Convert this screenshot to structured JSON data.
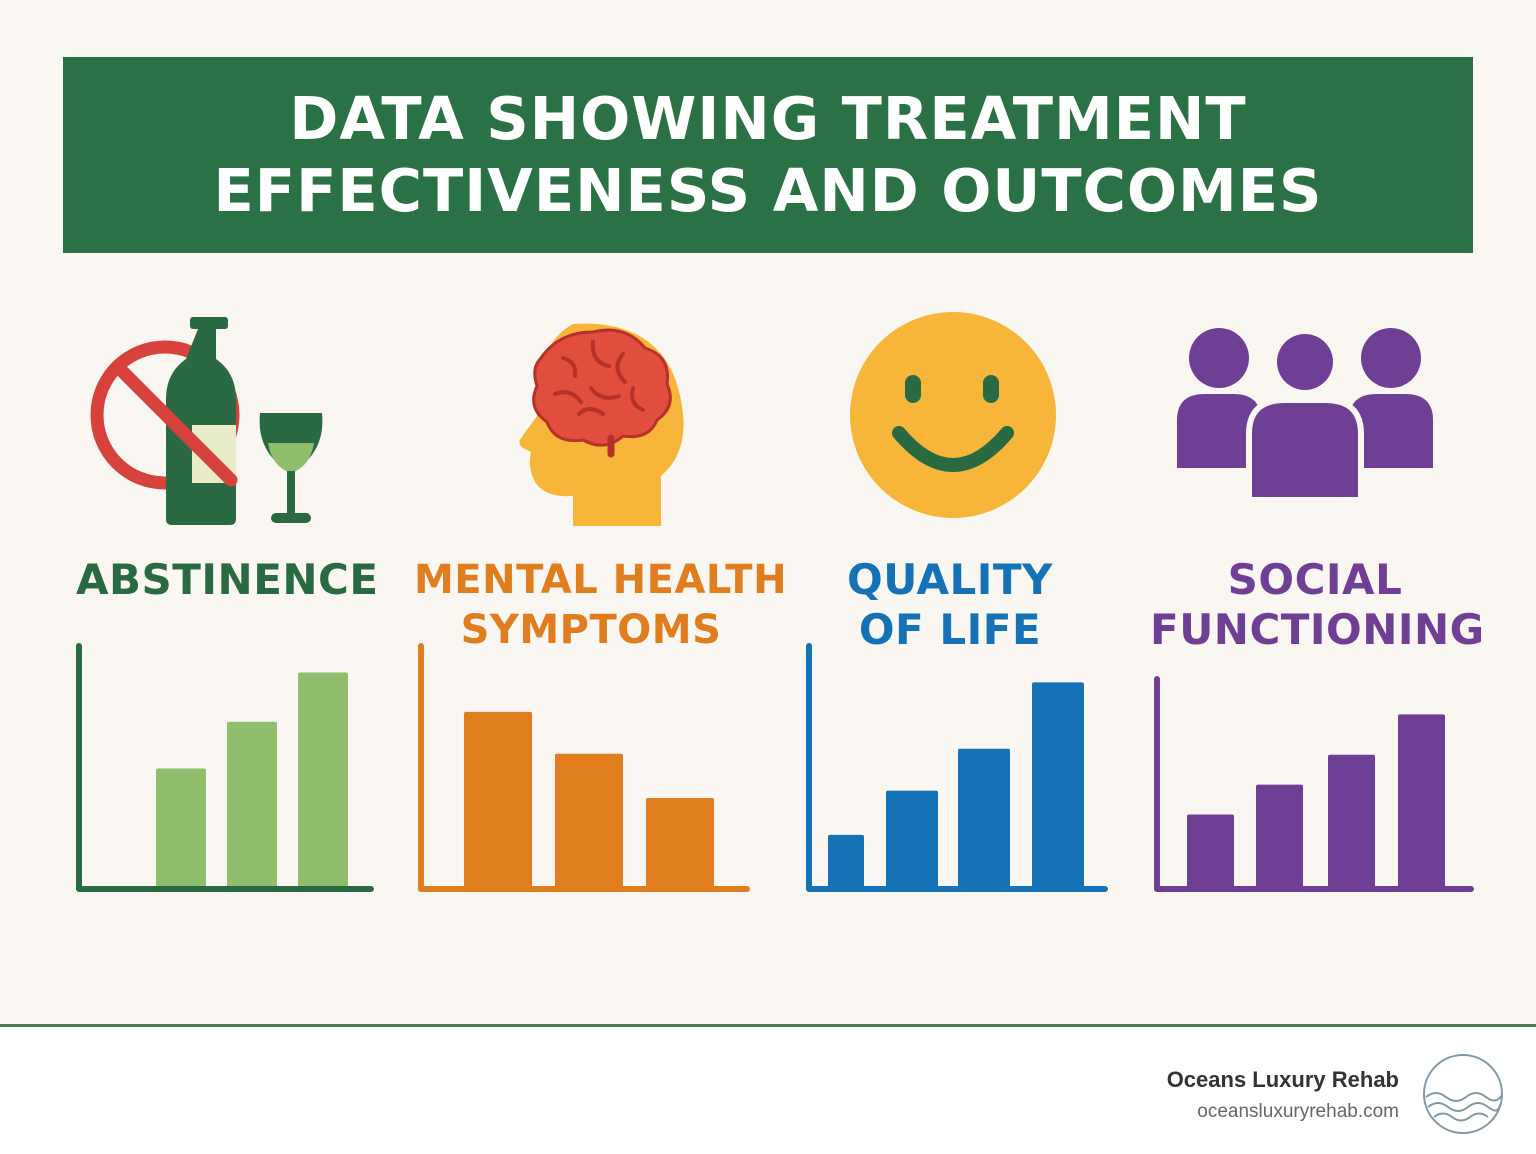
{
  "banner": {
    "title_line1": "DATA SHOWING TREATMENT",
    "title_line2": "EFFECTIVENESS AND OUTCOMES"
  },
  "colors": {
    "banner": "#2a7145",
    "abstinence": "#2a6a43",
    "abstinence_bars": "#8fbf6c",
    "mental_health": "#e07d1f",
    "quality_of_life": "#1572b6",
    "social_functioning": "#6f3f95"
  },
  "panels": [
    {
      "title_line1": "ABSTINENCE",
      "title_line2": "",
      "icon": "no-alcohol-icon"
    },
    {
      "title_line1": "MENTAL HEALTH",
      "title_line2": "SYMPTOMS",
      "icon": "head-brain-icon"
    },
    {
      "title_line1": "QUALITY",
      "title_line2": "OF LIFE",
      "icon": "smiley-face-icon"
    },
    {
      "title_line1": "SOCIAL",
      "title_line2": "FUNCTIONING",
      "icon": "people-group-icon"
    }
  ],
  "chart_data": [
    {
      "type": "bar",
      "title": "ABSTINENCE",
      "values": [
        49,
        68,
        88
      ],
      "ylim": [
        0,
        100
      ]
    },
    {
      "type": "bar",
      "title": "MENTAL HEALTH SYMPTOMS",
      "values": [
        72,
        55,
        37
      ],
      "ylim": [
        0,
        100
      ]
    },
    {
      "type": "bar",
      "title": "QUALITY OF LIFE",
      "values": [
        22,
        40,
        57,
        84
      ],
      "ylim": [
        0,
        100
      ]
    },
    {
      "type": "bar",
      "title": "SOCIAL FUNCTIONING",
      "values": [
        35,
        49,
        63,
        82
      ],
      "ylim": [
        0,
        100
      ]
    }
  ],
  "footer": {
    "brand_name": "Oceans Luxury Rehab",
    "brand_url": "oceansluxuryrehab.com",
    "logo_icon": "ocean-waves-logo-icon"
  }
}
